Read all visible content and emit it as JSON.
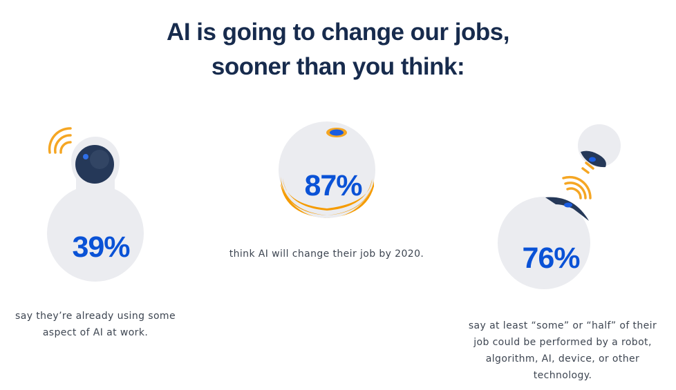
{
  "title": {
    "line1": "AI is going to change our jobs,",
    "line2": "sooner than you think:"
  },
  "stats": [
    {
      "value": "39%",
      "caption_line1": "say they’re already using some",
      "caption_line2": "aspect of AI at work."
    },
    {
      "value": "87%",
      "caption_line1": "think AI will change their job by 2020."
    },
    {
      "value": "76%",
      "caption_line1": "say at least “some” or “half” of their",
      "caption_line2": "job could be performed by a robot,",
      "caption_line3": "algorithm, AI, device, or other",
      "caption_line4": "technology."
    }
  ],
  "colors": {
    "title": "#172b4d",
    "accent_blue": "#0a52d6",
    "orange": "#f5a623",
    "robot_body": "#ebecf0",
    "robot_dark": "#253858"
  }
}
